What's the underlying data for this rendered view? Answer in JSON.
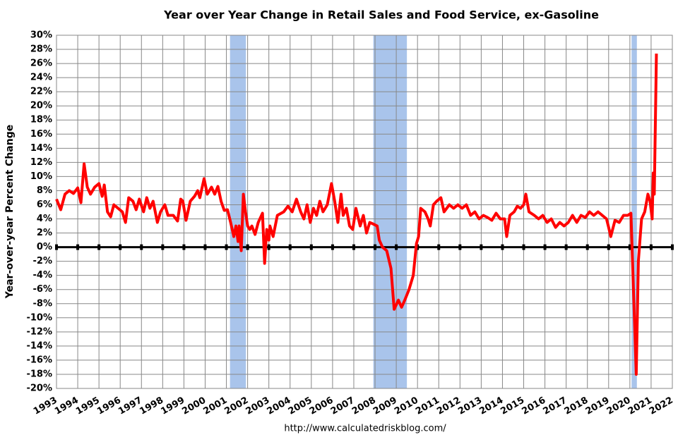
{
  "chart_data": {
    "type": "line",
    "title": "Year over Year Change in Retail Sales and Food Service, ex-Gasoline",
    "y_label": "Year-over-year Percent Change",
    "source": "http://www.calculatedriskblog.com/",
    "xlim": [
      1993,
      2022
    ],
    "xticks": [
      1993,
      1994,
      1995,
      1996,
      1997,
      1998,
      1999,
      2000,
      2001,
      2002,
      2003,
      2004,
      2005,
      2006,
      2007,
      2008,
      2009,
      2010,
      2011,
      2012,
      2013,
      2014,
      2015,
      2016,
      2017,
      2018,
      2019,
      2020,
      2021,
      2022
    ],
    "ylim": [
      -20,
      30
    ],
    "yticks": [
      {
        "value": -20,
        "label": "-20%"
      },
      {
        "value": -18,
        "label": "-18%"
      },
      {
        "value": -16,
        "label": "-16%"
      },
      {
        "value": -14,
        "label": "-14%"
      },
      {
        "value": -12,
        "label": "-12%"
      },
      {
        "value": -10,
        "label": "-10%"
      },
      {
        "value": -8,
        "label": "-8%"
      },
      {
        "value": -6,
        "label": "-6%"
      },
      {
        "value": -4,
        "label": "-4%"
      },
      {
        "value": -2,
        "label": "-2%"
      },
      {
        "value": 0,
        "label": "0%"
      },
      {
        "value": 2,
        "label": "2%"
      },
      {
        "value": 4,
        "label": "4%"
      },
      {
        "value": 6,
        "label": "6%"
      },
      {
        "value": 8,
        "label": "8%"
      },
      {
        "value": 10,
        "label": "10%"
      },
      {
        "value": 12,
        "label": "12%"
      },
      {
        "value": 14,
        "label": "14%"
      },
      {
        "value": 16,
        "label": "16%"
      },
      {
        "value": 18,
        "label": "18%"
      },
      {
        "value": 20,
        "label": "20%"
      },
      {
        "value": 22,
        "label": "22%"
      },
      {
        "value": 24,
        "label": "24%"
      },
      {
        "value": 26,
        "label": "26%"
      },
      {
        "value": 28,
        "label": "28%"
      },
      {
        "value": 30,
        "label": "30%"
      }
    ],
    "grid": true,
    "recessions": [
      [
        2001.17,
        2001.92
      ],
      [
        2007.92,
        2009.5
      ],
      [
        2020.08,
        2020.33
      ]
    ],
    "recession_color": "#a9c4eb",
    "color": "#ff0000",
    "x": [
      1993.0,
      1993.2,
      1993.4,
      1993.6,
      1993.8,
      1994.0,
      1994.15,
      1994.3,
      1994.45,
      1994.6,
      1994.8,
      1995.0,
      1995.15,
      1995.25,
      1995.4,
      1995.55,
      1995.7,
      1995.9,
      1996.1,
      1996.25,
      1996.4,
      1996.6,
      1996.75,
      1996.9,
      1997.1,
      1997.25,
      1997.4,
      1997.55,
      1997.75,
      1997.9,
      1998.1,
      1998.25,
      1998.5,
      1998.7,
      1998.85,
      1998.95,
      1999.1,
      1999.3,
      1999.5,
      1999.65,
      1999.75,
      1999.95,
      2000.1,
      2000.3,
      2000.45,
      2000.6,
      2000.75,
      2000.9,
      2001.05,
      2001.2,
      2001.35,
      2001.45,
      2001.55,
      2001.6,
      2001.7,
      2001.8,
      2001.9,
      2002.0,
      2002.1,
      2002.2,
      2002.35,
      2002.5,
      2002.7,
      2002.8,
      2002.9,
      2003.0,
      2003.05,
      2003.2,
      2003.4,
      2003.7,
      2003.9,
      2004.1,
      2004.3,
      2004.5,
      2004.65,
      2004.8,
      2004.95,
      2005.1,
      2005.25,
      2005.4,
      2005.55,
      2005.75,
      2005.95,
      2006.1,
      2006.25,
      2006.4,
      2006.5,
      2006.65,
      2006.8,
      2006.95,
      2007.1,
      2007.3,
      2007.45,
      2007.6,
      2007.75,
      2007.9,
      2008.1,
      2008.2,
      2008.35,
      2008.55,
      2008.75,
      2008.9,
      2009.1,
      2009.25,
      2009.4,
      2009.6,
      2009.8,
      2009.95,
      2010.05,
      2010.15,
      2010.35,
      2010.5,
      2010.6,
      2010.75,
      2010.9,
      2011.1,
      2011.25,
      2011.5,
      2011.7,
      2011.9,
      2012.1,
      2012.3,
      2012.5,
      2012.7,
      2012.9,
      2013.1,
      2013.3,
      2013.5,
      2013.7,
      2013.9,
      2014.1,
      2014.2,
      2014.35,
      2014.55,
      2014.7,
      2014.85,
      2015.0,
      2015.1,
      2015.25,
      2015.5,
      2015.7,
      2015.9,
      2016.1,
      2016.3,
      2016.5,
      2016.7,
      2016.9,
      2017.1,
      2017.3,
      2017.5,
      2017.7,
      2017.9,
      2018.1,
      2018.3,
      2018.5,
      2018.7,
      2018.9,
      2019.0,
      2019.1,
      2019.3,
      2019.5,
      2019.7,
      2019.9,
      2020.05,
      2020.3,
      2020.4,
      2020.55,
      2020.7,
      2020.85,
      2020.95,
      2021.05,
      2021.1,
      2021.15,
      2021.25
    ],
    "values": [
      6.8,
      5.3,
      7.5,
      8.0,
      7.6,
      8.4,
      6.3,
      11.8,
      8.5,
      7.5,
      8.5,
      9.0,
      7.2,
      8.8,
      5.0,
      4.3,
      6.0,
      5.5,
      5.0,
      3.5,
      7.0,
      6.5,
      5.3,
      6.8,
      5.0,
      7.0,
      5.5,
      6.5,
      3.5,
      5.0,
      6.0,
      4.5,
      4.5,
      3.7,
      6.8,
      6.5,
      3.8,
      6.5,
      7.2,
      8.0,
      7.0,
      9.7,
      7.5,
      8.5,
      7.5,
      8.6,
      6.5,
      5.2,
      5.3,
      3.5,
      1.5,
      3.0,
      0.8,
      3.0,
      -0.5,
      7.5,
      5.0,
      3.0,
      2.5,
      3.0,
      1.8,
      3.5,
      4.8,
      -2.3,
      2.5,
      1.0,
      3.0,
      1.5,
      4.5,
      5.0,
      5.8,
      5.0,
      6.8,
      5.0,
      4.0,
      6.0,
      3.5,
      5.5,
      4.5,
      6.5,
      5.0,
      6.0,
      9.0,
      6.5,
      3.5,
      7.5,
      4.5,
      5.5,
      3.0,
      2.5,
      5.5,
      3.0,
      4.5,
      2.0,
      3.5,
      3.3,
      3.0,
      1.0,
      0.0,
      -0.5,
      -3.0,
      -8.8,
      -7.5,
      -8.5,
      -7.5,
      -6.0,
      -4.0,
      0.5,
      1.5,
      5.5,
      5.0,
      4.0,
      3.0,
      6.0,
      6.5,
      7.0,
      5.0,
      6.0,
      5.5,
      6.0,
      5.5,
      6.0,
      4.5,
      5.0,
      4.0,
      4.5,
      4.2,
      3.8,
      4.8,
      4.0,
      4.0,
      1.5,
      4.5,
      5.0,
      5.8,
      5.5,
      6.0,
      7.5,
      5.0,
      4.5,
      4.0,
      4.5,
      3.5,
      4.0,
      2.8,
      3.5,
      3.0,
      3.5,
      4.5,
      3.5,
      4.5,
      4.2,
      5.0,
      4.5,
      5.0,
      4.5,
      4.0,
      2.8,
      1.5,
      3.8,
      3.5,
      4.5,
      4.5,
      4.8,
      -18.0,
      -2.0,
      4.0,
      5.0,
      7.5,
      6.5,
      4.0,
      10.5,
      7.5,
      27.4
    ]
  }
}
